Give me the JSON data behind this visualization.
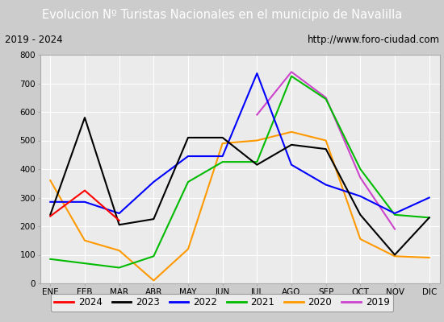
{
  "title": "Evolucion Nº Turistas Nacionales en el municipio de Navalilla",
  "subtitle_left": "2019 - 2024",
  "subtitle_right": "http://www.foro-ciudad.com",
  "months": [
    "ENE",
    "FEB",
    "MAR",
    "ABR",
    "MAY",
    "JUN",
    "JUL",
    "AGO",
    "SEP",
    "OCT",
    "NOV",
    "DIC"
  ],
  "series": {
    "2024": [
      235,
      325,
      220,
      null,
      null,
      null,
      null,
      null,
      null,
      null,
      null,
      null
    ],
    "2023": [
      240,
      580,
      205,
      225,
      510,
      510,
      415,
      485,
      470,
      240,
      100,
      230
    ],
    "2022": [
      285,
      285,
      245,
      355,
      445,
      445,
      735,
      415,
      345,
      305,
      245,
      300
    ],
    "2021": [
      85,
      70,
      55,
      95,
      355,
      425,
      425,
      725,
      645,
      400,
      240,
      230
    ],
    "2020": [
      360,
      150,
      115,
      10,
      120,
      490,
      500,
      530,
      500,
      155,
      95,
      90
    ],
    "2019": [
      null,
      null,
      null,
      null,
      null,
      null,
      590,
      740,
      650,
      370,
      190,
      null
    ]
  },
  "colors": {
    "2024": "#ff0000",
    "2023": "#000000",
    "2022": "#0000ff",
    "2021": "#00bb00",
    "2020": "#ff9900",
    "2019": "#cc44cc"
  },
  "ylim": [
    0,
    800
  ],
  "yticks": [
    0,
    100,
    200,
    300,
    400,
    500,
    600,
    700,
    800
  ],
  "plot_bg": "#ebebeb",
  "title_bg": "#5599dd",
  "title_fg": "#ffffff",
  "sub_bg": "#dddddd",
  "grid_color": "#ffffff",
  "outer_bg": "#cccccc"
}
